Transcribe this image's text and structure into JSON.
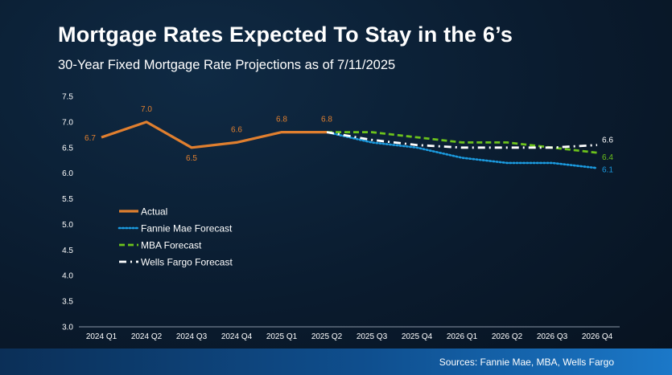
{
  "title": "Mortgage Rates Expected To Stay in the 6’s",
  "subtitle": "30-Year Fixed Mortgage Rate Projections as of 7/11/2025",
  "sources": "Sources: Fannie Mae, MBA, Wells Fargo",
  "colors": {
    "actual": "#e07f2f",
    "fannie": "#1b9be0",
    "mba": "#6cc21c",
    "wells": "#ffffff",
    "text": "#ffffff"
  },
  "chart_data": {
    "type": "line",
    "categories": [
      "2024 Q1",
      "2024 Q2",
      "2024 Q3",
      "2024 Q4",
      "2025 Q1",
      "2025 Q2",
      "2025 Q3",
      "2025 Q4",
      "2026 Q1",
      "2026 Q2",
      "2026 Q3",
      "2026 Q4"
    ],
    "ylim": [
      3.0,
      7.5
    ],
    "yticks": [
      "3.0",
      "3.5",
      "4.0",
      "4.5",
      "5.0",
      "5.5",
      "6.0",
      "6.5",
      "7.0",
      "7.5"
    ],
    "grid": false,
    "legend_position": "left-middle",
    "series": [
      {
        "name": "Actual",
        "style": "solid",
        "color": "#e07f2f",
        "values": [
          6.7,
          7.0,
          6.5,
          6.6,
          6.8,
          6.8,
          null,
          null,
          null,
          null,
          null,
          null
        ],
        "labels": [
          "6.7",
          "7.0",
          "6.5",
          "6.6",
          "6.8",
          "6.8",
          "",
          "",
          "",
          "",
          "",
          ""
        ]
      },
      {
        "name": "Fannie Mae Forecast",
        "style": "dotted",
        "color": "#1b9be0",
        "values": [
          null,
          null,
          null,
          null,
          null,
          6.8,
          6.6,
          6.5,
          6.3,
          6.2,
          6.2,
          6.1
        ],
        "labels": [
          "",
          "",
          "",
          "",
          "",
          "",
          "",
          "",
          "",
          "",
          "",
          "6.1"
        ]
      },
      {
        "name": "MBA Forecast",
        "style": "dashed",
        "color": "#6cc21c",
        "values": [
          null,
          null,
          null,
          null,
          null,
          6.8,
          6.8,
          6.7,
          6.6,
          6.6,
          6.5,
          6.4
        ],
        "labels": [
          "",
          "",
          "",
          "",
          "",
          "",
          "",
          "",
          "",
          "",
          "",
          "6.4"
        ]
      },
      {
        "name": "Wells Fargo Forecast",
        "style": "dashdot",
        "color": "#ffffff",
        "values": [
          null,
          null,
          null,
          null,
          null,
          6.8,
          6.65,
          6.55,
          6.5,
          6.5,
          6.5,
          6.55
        ],
        "labels": [
          "",
          "",
          "",
          "",
          "",
          "",
          "",
          "",
          "",
          "",
          "",
          "6.6"
        ]
      }
    ]
  }
}
